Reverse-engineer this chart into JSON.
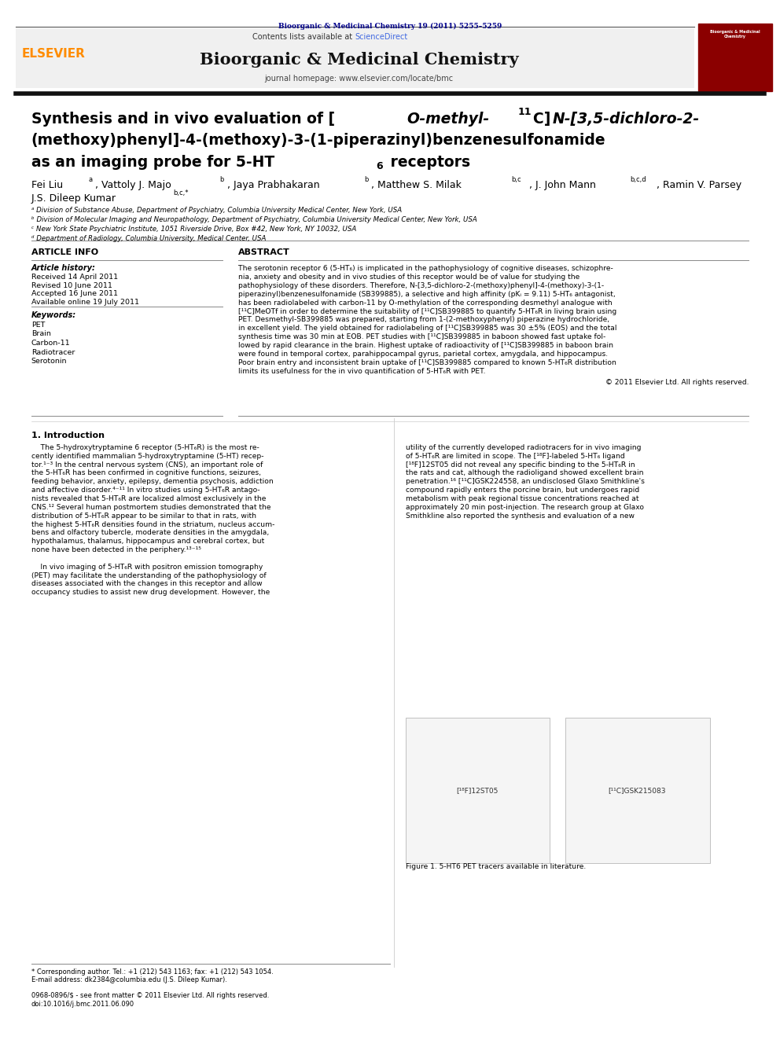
{
  "page_width": 9.92,
  "page_height": 13.23,
  "background_color": "#ffffff",
  "top_journal_ref": "Bioorganic & Medicinal Chemistry 19 (2011) 5255–5259",
  "top_journal_ref_color": "#00008B",
  "header_bg": "#f0f0f0",
  "header_border_color": "#8B0000",
  "contents_line": "Contents lists available at ScienceDirect",
  "sciencedirect_color": "#4169E1",
  "journal_name": "Bioorganic & Medicinal Chemistry",
  "homepage_line": "journal homepage: www.elsevier.com/locate/bmc",
  "elsevier_color": "#FF8C00",
  "elsevier_text": "ELSEVIER",
  "divider_color": "#1a1a1a",
  "title_prefix": "O-methyl-",
  "title_superscript": "11",
  "affil_a": "ᵃ Division of Substance Abuse, Department of Psychiatry, Columbia University Medical Center, New York, USA",
  "affil_b": "ᵇ Division of Molecular Imaging and Neuropathology, Department of Psychiatry, Columbia University Medical Center, New York, USA",
  "affil_c": "ᶜ New York State Psychiatric Institute, 1051 Riverside Drive, Box #42, New York, NY 10032, USA",
  "affil_d": "ᵈ Department of Radiology, Columbia University, Medical Center, USA",
  "article_info_header": "ARTICLE INFO",
  "abstract_header": "ABSTRACT",
  "article_history_label": "Article history:",
  "received": "Received 14 April 2011",
  "revised": "Revised 10 June 2011",
  "accepted": "Accepted 16 June 2011",
  "available": "Available online 19 July 2011",
  "keywords_label": "Keywords:",
  "keywords": [
    "PET",
    "Brain",
    "Carbon-11",
    "Radiotracer",
    "Serotonin"
  ],
  "abstract_text": "The serotonin receptor 6 (5-HT6) is implicated in the pathophysiology of cognitive diseases, schizophrenia, anxiety and obesity and in vivo studies of this receptor would be of value for studying the pathophysiology of these disorders. Therefore, N-[3,5-dichloro-2-(methoxy)phenyl]-4-(methoxy)-3-(1-piperazinyl)benzenesulfonamide (SB399885), a selective and high affinity (pKi = 9.11) 5-HT6 antagonist, has been radiolabeled with carbon-11 by O-methylation of the corresponding desmethyl analogue with [11C]MeOTf in order to determine the suitability of [11C]SB399885 to quantify 5-HT6R in living brain using PET. Desmethyl-SB399885 was prepared, starting from 1-(2-methoxyphenyl) piperazine hydrochloride, in excellent yield. The yield obtained for radiolabeling of [11C]SB399885 was 30 +/-5% (EOS) and the total synthesis time was 30 min at EOB. PET studies with [11C]SB399885 in baboon showed fast uptake followed by rapid clearance in the brain. Highest uptake of radioactivity of [11C]SB399885 in baboon brain were found in temporal cortex, parahippocampal gyrus, parietal cortex, amygdala, and hippocampus. Poor brain entry and inconsistent brain uptake of [11C]SB399885 compared to known 5-HT6R distribution limits its usefulness for the in vivo quantification of 5-HT6R with PET.",
  "copyright": "© 2011 Elsevier Ltd. All rights reserved.",
  "intro_header": "1. Introduction",
  "figure_caption": "Figure 1. 5-HT6 PET tracers available in literature.",
  "footnote_star": "* Corresponding author. Tel.: +1 (212) 543 1163; fax: +1 (212) 543 1054.",
  "footnote_email": "E-mail address: dk2384@columbia.edu (J.S. Dileep Kumar).",
  "footnote_issn": "0968-0896/$ - see front matter © 2011 Elsevier Ltd. All rights reserved.",
  "footnote_doi": "doi:10.1016/j.bmc.2011.06.090"
}
